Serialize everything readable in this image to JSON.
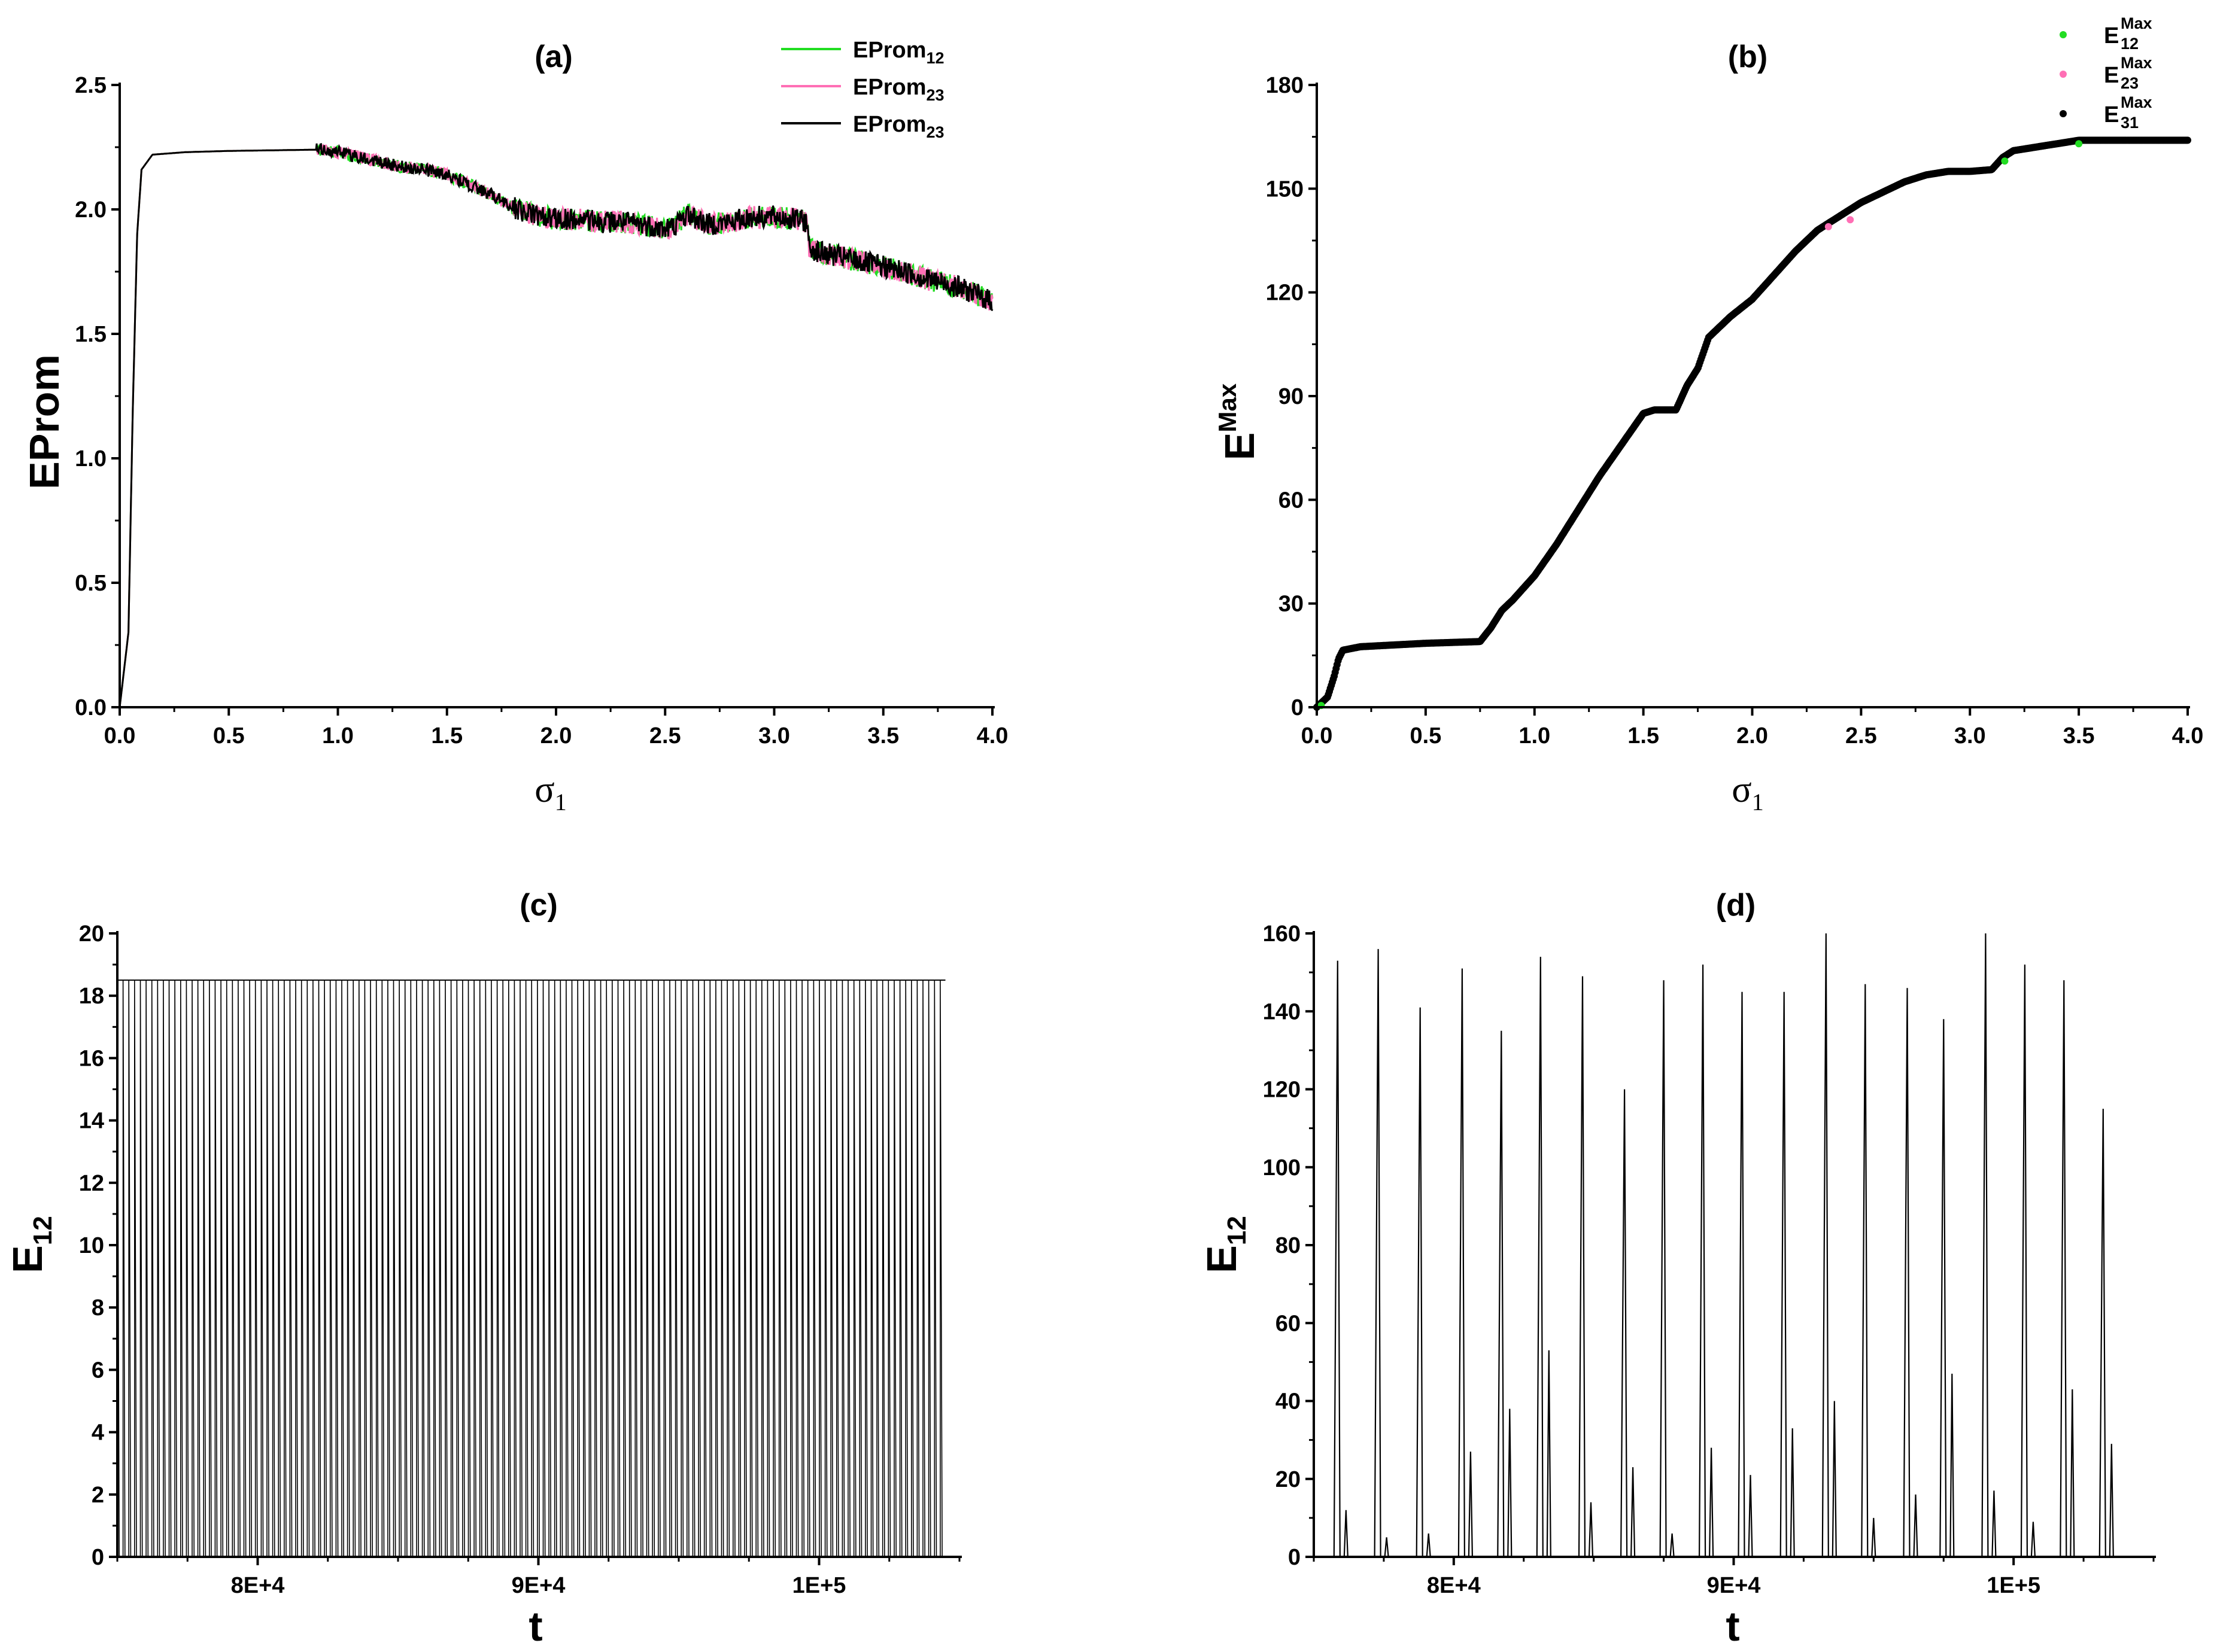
{
  "chart_data": [
    {
      "id": "a",
      "type": "line",
      "title": "(a)",
      "xlabel": "σ",
      "xlabel_sub": "1",
      "ylabel": "EProm",
      "xlim": [
        0.0,
        4.0
      ],
      "ylim": [
        0.0,
        2.5
      ],
      "xticks": [
        "0.0",
        "0.5",
        "1.0",
        "1.5",
        "2.0",
        "2.5",
        "3.0",
        "3.5",
        "4.0"
      ],
      "yticks": [
        "0.0",
        "0.5",
        "1.0",
        "1.5",
        "2.0",
        "2.5"
      ],
      "legend_position": "top-right",
      "series": [
        {
          "name": "EProm",
          "sub": "12",
          "color": "#22dd22"
        },
        {
          "name": "EProm",
          "sub": "23",
          "color": "#ff6fb5"
        },
        {
          "name": "EProm",
          "sub": "23",
          "color": "#000000"
        }
      ],
      "x": [
        0.0,
        0.04,
        0.06,
        0.08,
        0.1,
        0.15,
        0.3,
        0.5,
        0.9,
        1.0,
        1.1,
        1.2,
        1.3,
        1.4,
        1.5,
        1.6,
        1.7,
        1.8,
        1.9,
        2.0,
        2.1,
        2.2,
        2.3,
        2.4,
        2.5,
        2.55,
        2.6,
        2.65,
        2.7,
        2.8,
        2.9,
        3.0,
        3.1,
        3.15,
        3.16,
        3.2,
        3.3,
        3.4,
        3.5,
        3.6,
        3.7,
        3.8,
        3.9,
        4.0
      ],
      "y": [
        0.0,
        0.3,
        1.2,
        1.9,
        2.16,
        2.22,
        2.23,
        2.235,
        2.24,
        2.23,
        2.21,
        2.19,
        2.17,
        2.16,
        2.14,
        2.1,
        2.06,
        2.01,
        1.98,
        1.96,
        1.96,
        1.95,
        1.95,
        1.94,
        1.92,
        1.94,
        1.98,
        1.96,
        1.94,
        1.95,
        1.97,
        1.97,
        1.96,
        1.95,
        1.85,
        1.83,
        1.81,
        1.79,
        1.77,
        1.75,
        1.72,
        1.7,
        1.67,
        1.63
      ]
    },
    {
      "id": "b",
      "type": "scatter",
      "title": "(b)",
      "xlabel": "σ",
      "xlabel_sub": "1",
      "ylabel": "E",
      "ylabel_sup": "Max",
      "xlim": [
        0.0,
        4.0
      ],
      "ylim": [
        0,
        180
      ],
      "xticks": [
        "0.0",
        "0.5",
        "1.0",
        "1.5",
        "2.0",
        "2.5",
        "3.0",
        "3.5",
        "4.0"
      ],
      "yticks": [
        "0",
        "30",
        "60",
        "90",
        "120",
        "150",
        "180"
      ],
      "legend_position": "top-right",
      "series": [
        {
          "name": "E",
          "sub": "12",
          "sup": "Max",
          "color": "#22dd22"
        },
        {
          "name": "E",
          "sub": "23",
          "sup": "Max",
          "color": "#ff6fb5"
        },
        {
          "name": "E",
          "sub": "31",
          "sup": "Max",
          "color": "#000000"
        }
      ],
      "x": [
        0.0,
        0.05,
        0.08,
        0.1,
        0.12,
        0.2,
        0.5,
        0.75,
        0.8,
        0.85,
        0.9,
        1.0,
        1.1,
        1.2,
        1.3,
        1.4,
        1.5,
        1.55,
        1.65,
        1.7,
        1.75,
        1.8,
        1.9,
        2.0,
        2.1,
        2.2,
        2.3,
        2.4,
        2.5,
        2.6,
        2.7,
        2.8,
        2.9,
        3.0,
        3.1,
        3.15,
        3.2,
        3.3,
        3.4,
        3.5,
        3.6,
        3.8,
        4.0
      ],
      "y": [
        0,
        3,
        9,
        14,
        16.5,
        17.5,
        18.5,
        19,
        23,
        28,
        31,
        38,
        47,
        57,
        67,
        76,
        85,
        86,
        86,
        93,
        98,
        107,
        113,
        118,
        125,
        132,
        138,
        142,
        146,
        149,
        152,
        154,
        155,
        155,
        155.5,
        159,
        161,
        162,
        163,
        164,
        164,
        164,
        164
      ]
    },
    {
      "id": "c",
      "type": "line",
      "title": "(c)",
      "xlabel": "t",
      "ylabel": "E",
      "ylabel_sub": "12",
      "xlim": [
        75000,
        105000
      ],
      "ylim": [
        0,
        20
      ],
      "xticks": [
        "8E+4",
        "9E+4",
        "1E+5"
      ],
      "xtick_values": [
        80000,
        90000,
        100000
      ],
      "yticks": [
        "0",
        "2",
        "4",
        "6",
        "8",
        "10",
        "12",
        "14",
        "16",
        "18",
        "20"
      ],
      "spike_period": 205,
      "spike_amplitude": 18.5,
      "t_start": 75000,
      "t_end": 104500
    },
    {
      "id": "d",
      "type": "line",
      "title": "(d)",
      "xlabel": "t",
      "ylabel": "E",
      "ylabel_sub": "12",
      "xlim": [
        75000,
        105000
      ],
      "ylim": [
        0,
        160
      ],
      "xticks": [
        "8E+4",
        "9E+4",
        "1E+5"
      ],
      "xtick_values": [
        80000,
        90000,
        100000
      ],
      "yticks": [
        "0",
        "20",
        "40",
        "60",
        "80",
        "100",
        "120",
        "140",
        "160"
      ],
      "spikes": [
        {
          "t": 75850,
          "peaks": [
            153,
            12
          ]
        },
        {
          "t": 77300,
          "peaks": [
            156,
            5
          ]
        },
        {
          "t": 78800,
          "peaks": [
            141,
            6
          ]
        },
        {
          "t": 80300,
          "peaks": [
            151,
            27
          ]
        },
        {
          "t": 81700,
          "peaks": [
            135,
            38
          ]
        },
        {
          "t": 83100,
          "peaks": [
            154,
            53
          ]
        },
        {
          "t": 84600,
          "peaks": [
            149,
            14
          ]
        },
        {
          "t": 86100,
          "peaks": [
            120,
            23
          ]
        },
        {
          "t": 87500,
          "peaks": [
            148,
            6
          ]
        },
        {
          "t": 88900,
          "peaks": [
            152,
            28
          ]
        },
        {
          "t": 90300,
          "peaks": [
            145,
            21
          ]
        },
        {
          "t": 91800,
          "peaks": [
            145,
            33
          ]
        },
        {
          "t": 93300,
          "peaks": [
            160,
            40
          ]
        },
        {
          "t": 94700,
          "peaks": [
            147,
            10
          ]
        },
        {
          "t": 96200,
          "peaks": [
            146,
            16
          ]
        },
        {
          "t": 97500,
          "peaks": [
            138,
            47
          ]
        },
        {
          "t": 99000,
          "peaks": [
            160,
            17
          ]
        },
        {
          "t": 100400,
          "peaks": [
            152,
            9
          ]
        },
        {
          "t": 101800,
          "peaks": [
            148,
            43
          ]
        },
        {
          "t": 103200,
          "peaks": [
            115,
            29
          ]
        }
      ]
    }
  ]
}
